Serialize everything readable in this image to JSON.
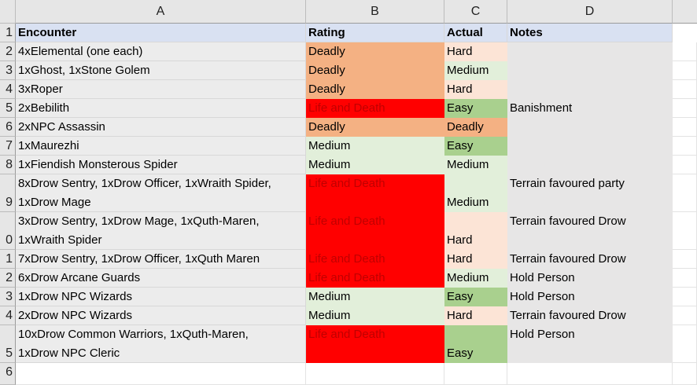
{
  "columns": [
    "A",
    "B",
    "C",
    "D"
  ],
  "row_numbers": [
    "1",
    "2",
    "3",
    "4",
    "5",
    "6",
    "7",
    "8",
    "9",
    "0",
    "1",
    "2",
    "3",
    "4",
    "5",
    "6"
  ],
  "headers": {
    "encounter": "Encounter",
    "rating": "Rating",
    "actual": "Actual",
    "notes": "Notes"
  },
  "colors": {
    "header_fill": "#d9e1f2",
    "deadly": "#f4b183",
    "life_and_death": "#ff0000",
    "life_and_death_text": "#c00000",
    "medium": "#e2efda",
    "hard": "#fce4d6",
    "easy": "#a9d08e",
    "notes_fill": "#e7e6e6"
  },
  "rows": [
    {
      "encounter": [
        "4xElemental (one each)"
      ],
      "rating": "Deadly",
      "actual": "Hard",
      "notes": ""
    },
    {
      "encounter": [
        "1xGhost, 1xStone Golem"
      ],
      "rating": "Deadly",
      "actual": "Medium",
      "notes": ""
    },
    {
      "encounter": [
        "3xRoper"
      ],
      "rating": "Deadly",
      "actual": "Hard",
      "notes": ""
    },
    {
      "encounter": [
        "2xBebilith"
      ],
      "rating": "Life and Death",
      "actual": "Easy",
      "notes": "Banishment"
    },
    {
      "encounter": [
        "2xNPC Assassin"
      ],
      "rating": "Deadly",
      "actual": "Deadly",
      "notes": ""
    },
    {
      "encounter": [
        "1xMaurezhi"
      ],
      "rating": "Medium",
      "actual": "Easy",
      "notes": ""
    },
    {
      "encounter": [
        "1xFiendish Monsterous Spider"
      ],
      "rating": "Medium",
      "actual": "Medium",
      "notes": ""
    },
    {
      "encounter": [
        "8xDrow Sentry, 1xDrow Officer, 1xWraith Spider,",
        "1xDrow Mage"
      ],
      "rating": "Life and Death",
      "actual": "Medium",
      "notes": "Terrain favoured party"
    },
    {
      "encounter": [
        "3xDrow Sentry, 1xDrow Mage, 1xQuth-Maren,",
        "1xWraith Spider"
      ],
      "rating": "Life and Death",
      "actual": "Hard",
      "notes": "Terrain favoured Drow"
    },
    {
      "encounter": [
        "7xDrow Sentry, 1xDrow Officer, 1xQuth Maren"
      ],
      "rating": "Life and Death",
      "actual": "Hard",
      "notes": "Terrain favoured Drow"
    },
    {
      "encounter": [
        "6xDrow Arcane Guards"
      ],
      "rating": "Life and Death",
      "actual": "Medium",
      "notes": "Hold Person"
    },
    {
      "encounter": [
        "1xDrow NPC Wizards"
      ],
      "rating": "Medium",
      "actual": "Easy",
      "notes": "Hold Person"
    },
    {
      "encounter": [
        "2xDrow NPC Wizards"
      ],
      "rating": "Medium",
      "actual": "Hard",
      "notes": "Terrain favoured Drow"
    },
    {
      "encounter": [
        "10xDrow Common Warriors, 1xQuth-Maren,",
        "1xDrow NPC Cleric"
      ],
      "rating": "Life and Death",
      "actual": "Easy",
      "notes": "Hold Person"
    }
  ]
}
